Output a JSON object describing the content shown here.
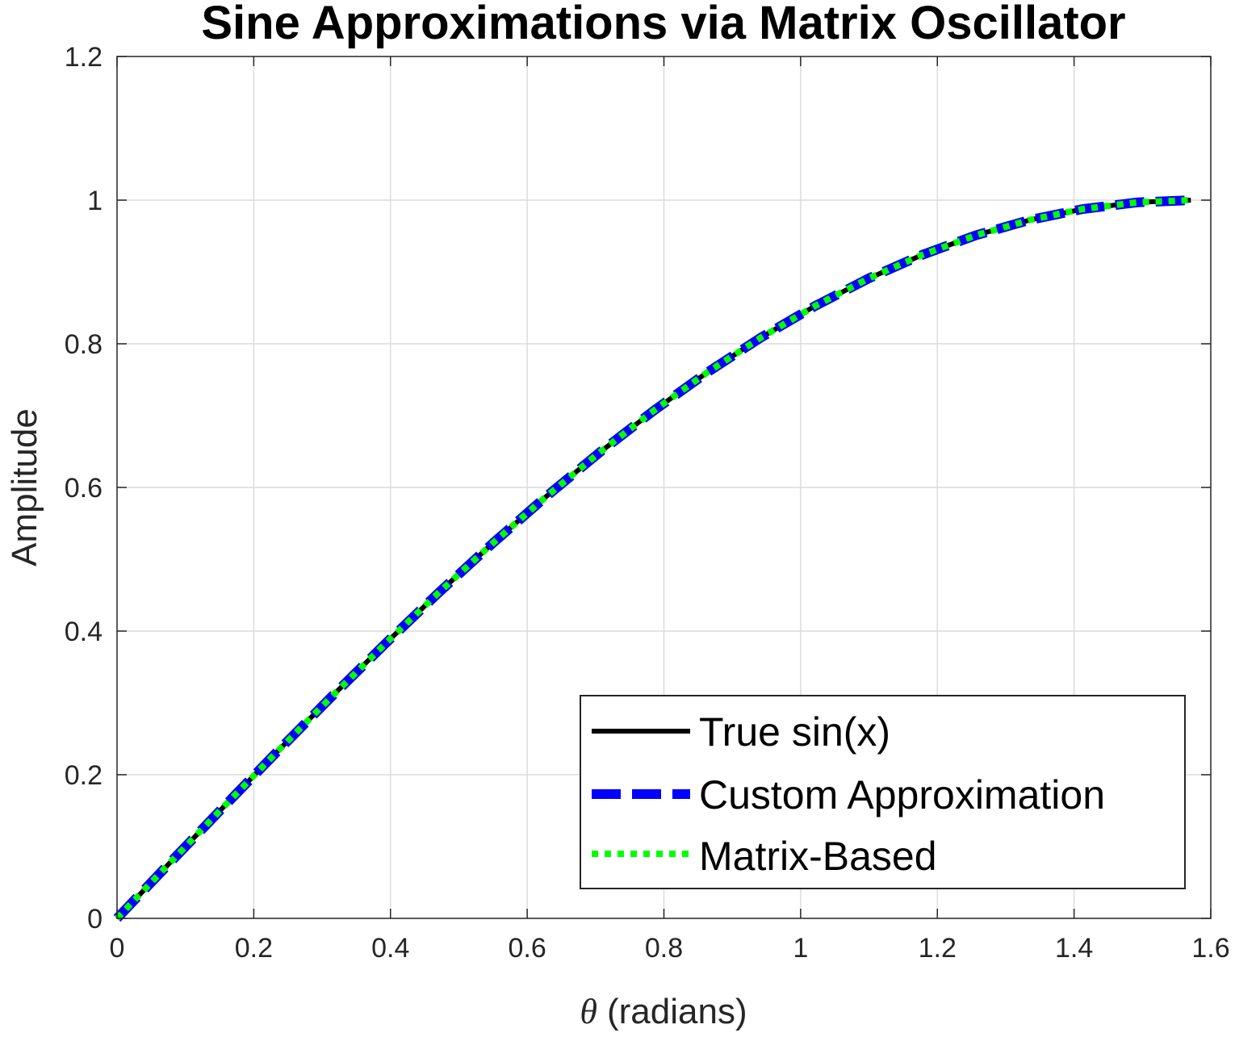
{
  "chart_data": {
    "type": "line",
    "title": "Sine Approximations via Matrix Oscillator",
    "xlabel_symbol": "θ",
    "xlabel_text": "(radians)",
    "ylabel": "Amplitude",
    "xlim": [
      0,
      1.6
    ],
    "ylim": [
      0,
      1.2
    ],
    "xticks": [
      0,
      0.2,
      0.4,
      0.6,
      0.8,
      1,
      1.2,
      1.4,
      1.6
    ],
    "xtick_labels": [
      "0",
      "0.2",
      "0.4",
      "0.6",
      "0.8",
      "1",
      "1.2",
      "1.4",
      "1.6"
    ],
    "yticks": [
      0,
      0.2,
      0.4,
      0.6,
      0.8,
      1,
      1.2
    ],
    "ytick_labels": [
      "0",
      "0.2",
      "0.4",
      "0.6",
      "0.8",
      "1",
      "1.2"
    ],
    "grid": true,
    "legend_position": "bottom-right",
    "x": [
      0,
      0.0785,
      0.1571,
      0.2356,
      0.3142,
      0.3927,
      0.4712,
      0.5498,
      0.6283,
      0.7069,
      0.7854,
      0.8639,
      0.9425,
      1.021,
      1.0996,
      1.1781,
      1.2566,
      1.3352,
      1.4137,
      1.4923,
      1.5708
    ],
    "series": [
      {
        "name": "True sin(x)",
        "color": "#000000",
        "style": "solid",
        "values": [
          0,
          0.0785,
          0.1564,
          0.2334,
          0.309,
          0.3827,
          0.454,
          0.5225,
          0.5878,
          0.6494,
          0.7071,
          0.7604,
          0.809,
          0.8526,
          0.891,
          0.9239,
          0.9511,
          0.9724,
          0.9877,
          0.9969,
          1.0
        ]
      },
      {
        "name": "Custom Approximation",
        "color": "#0000ff",
        "style": "dashed",
        "values": [
          0,
          0.0785,
          0.1564,
          0.2334,
          0.309,
          0.3827,
          0.454,
          0.5225,
          0.5878,
          0.6494,
          0.7071,
          0.7604,
          0.809,
          0.8526,
          0.891,
          0.9239,
          0.9511,
          0.9724,
          0.9877,
          0.9969,
          1.0
        ]
      },
      {
        "name": "Matrix-Based",
        "color": "#00ff00",
        "style": "dotted",
        "values": [
          0,
          0.0785,
          0.1564,
          0.2334,
          0.309,
          0.3827,
          0.454,
          0.5225,
          0.5878,
          0.6494,
          0.7071,
          0.7604,
          0.809,
          0.8526,
          0.891,
          0.9239,
          0.9511,
          0.9724,
          0.9877,
          0.9969,
          1.0
        ]
      }
    ]
  }
}
